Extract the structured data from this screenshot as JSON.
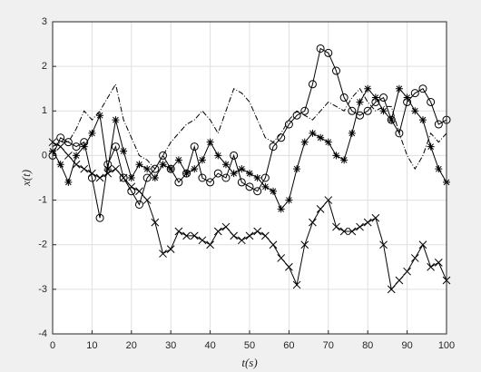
{
  "chart_data": {
    "type": "line",
    "xlabel": "t(s)",
    "ylabel": "x(t)",
    "x": [
      0,
      2,
      4,
      6,
      8,
      10,
      12,
      14,
      16,
      18,
      20,
      22,
      24,
      26,
      28,
      30,
      32,
      34,
      36,
      38,
      40,
      42,
      44,
      46,
      48,
      50,
      52,
      54,
      56,
      58,
      60,
      62,
      64,
      66,
      68,
      70,
      72,
      74,
      76,
      78,
      80,
      82,
      84,
      86,
      88,
      90,
      92,
      94,
      96,
      98,
      100
    ],
    "series": [
      {
        "color": "#000000",
        "marker": "o",
        "linestyle": "-",
        "values": [
          0,
          0.4,
          0.3,
          0.2,
          0.3,
          -0.5,
          -1.4,
          -0.2,
          0.2,
          -0.5,
          -0.8,
          -1.1,
          -0.5,
          -0.3,
          0,
          -0.3,
          -0.6,
          -0.4,
          0.2,
          -0.5,
          -0.6,
          -0.4,
          -0.5,
          0,
          -0.6,
          -0.7,
          -0.8,
          -0.5,
          0.2,
          0.4,
          0.7,
          0.9,
          1.0,
          1.6,
          2.4,
          2.3,
          1.9,
          1.3,
          1.0,
          0.9,
          1.0,
          1.2,
          1.3,
          0.8,
          0.5,
          1.2,
          1.4,
          1.5,
          1.2,
          0.7,
          0.8
        ]
      },
      {
        "color": "#000000",
        "marker": "*",
        "linestyle": "-",
        "values": [
          0.1,
          -0.2,
          -0.6,
          0,
          0.2,
          0.5,
          0.9,
          -0.3,
          0.8,
          0.1,
          -0.5,
          -0.2,
          -0.3,
          -0.5,
          -0.2,
          -0.3,
          -0.1,
          -0.4,
          -0.3,
          -0.1,
          0.3,
          0,
          -0.2,
          -0.4,
          -0.3,
          -0.4,
          -0.5,
          -0.7,
          -0.8,
          -1.2,
          -1.0,
          -0.3,
          0.3,
          0.5,
          0.4,
          0.3,
          0,
          -0.1,
          0.5,
          1.2,
          1.5,
          1.3,
          1.0,
          0.8,
          1.5,
          1.3,
          1.0,
          0.8,
          0.2,
          -0.3,
          -0.6
        ]
      },
      {
        "color": "#000000",
        "marker": "x",
        "linestyle": "-",
        "values": [
          0.3,
          0.2,
          0,
          -0.2,
          -0.3,
          -0.4,
          -0.5,
          -0.4,
          -0.3,
          -0.5,
          -0.7,
          -0.8,
          -1.0,
          -1.5,
          -2.2,
          -2.1,
          -1.7,
          -1.8,
          -1.8,
          -1.9,
          -2.0,
          -1.7,
          -1.6,
          -1.8,
          -1.9,
          -1.8,
          -1.7,
          -1.8,
          -2.0,
          -2.3,
          -2.5,
          -2.9,
          -2.0,
          -1.5,
          -1.2,
          -1.0,
          -1.6,
          -1.7,
          -1.7,
          -1.6,
          -1.5,
          -1.4,
          -2.0,
          -3.0,
          -2.8,
          -2.6,
          -2.3,
          -2.0,
          -2.5,
          -2.4,
          -2.8
        ]
      },
      {
        "color": "#000000",
        "marker": "none",
        "linestyle": "-.",
        "values": [
          0.2,
          0.3,
          0.3,
          0.6,
          1.0,
          0.8,
          1.0,
          1.3,
          1.6,
          0.8,
          0.4,
          0,
          -0.1,
          -0.3,
          0,
          0.3,
          0.5,
          0.7,
          0.8,
          1.0,
          0.8,
          0.5,
          1.0,
          1.5,
          1.4,
          1.2,
          0.8,
          0.4,
          0.3,
          0.5,
          0.8,
          1.0,
          0.9,
          0.8,
          1.0,
          1.2,
          1.1,
          1.0,
          1.3,
          1.5,
          1.2,
          1.0,
          1.1,
          1.1,
          0.5,
          0,
          -0.3,
          0,
          0.5,
          0.3,
          0.5
        ]
      }
    ],
    "xlim": [
      0,
      100
    ],
    "xticks": [
      0,
      10,
      20,
      30,
      40,
      50,
      60,
      70,
      80,
      90,
      100
    ],
    "ylim": [
      -4,
      3
    ],
    "yticks": [
      -4,
      -3,
      -2,
      -1,
      0,
      1,
      2,
      3
    ],
    "grid": true
  }
}
